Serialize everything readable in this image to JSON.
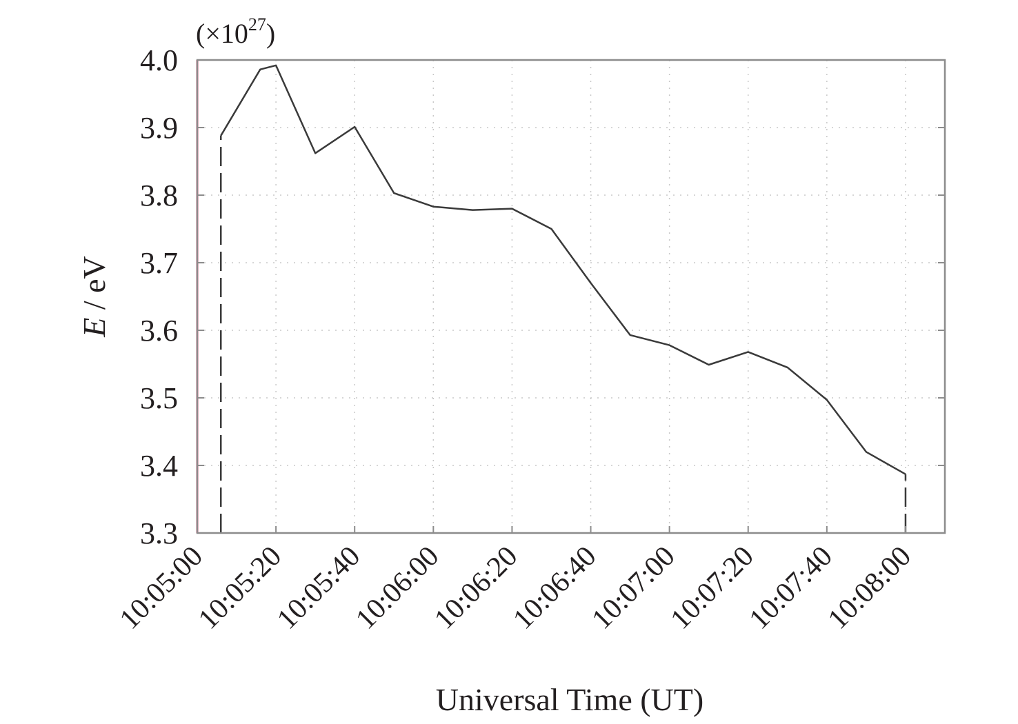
{
  "chart_data": {
    "type": "line",
    "xlabel": "Universal Time (UT)",
    "ylabel_italic": "E",
    "ylabel_rest": " / eV",
    "y_multiplier": {
      "prefix": "(×10",
      "exponent": "27",
      "suffix": ")"
    },
    "xlim": [
      "10:05:00",
      "10:08:10"
    ],
    "ylim": [
      3.3,
      4.0
    ],
    "xticks": [
      "10:05:00",
      "10:05:20",
      "10:05:40",
      "10:06:00",
      "10:06:20",
      "10:06:40",
      "10:07:00",
      "10:07:20",
      "10:07:40",
      "10:08:00"
    ],
    "yticks": [
      "3.3",
      "3.4",
      "3.5",
      "3.6",
      "3.7",
      "3.8",
      "3.9",
      "4.0"
    ],
    "grid": true,
    "series": [
      {
        "color": "#3a3a3a",
        "x": [
          "10:05:06",
          "10:05:16",
          "10:05:20",
          "10:05:30",
          "10:05:40",
          "10:05:50",
          "10:06:00",
          "10:06:10",
          "10:06:20",
          "10:06:30",
          "10:06:40",
          "10:06:50",
          "10:07:00",
          "10:07:10",
          "10:07:20",
          "10:07:30",
          "10:07:40",
          "10:07:50",
          "10:08:00"
        ],
        "y": [
          3.888,
          3.986,
          3.992,
          3.862,
          3.901,
          3.803,
          3.783,
          3.778,
          3.78,
          3.75,
          3.67,
          3.593,
          3.578,
          3.549,
          3.568,
          3.545,
          3.497,
          3.42,
          3.387
        ]
      }
    ],
    "annotations": [
      {
        "kind": "vertical-line",
        "style": "solid",
        "color": "#e8416f",
        "x": "10:05:00"
      },
      {
        "kind": "vertical-line",
        "style": "dashed",
        "color": "#3a3a3a",
        "x": "10:05:06",
        "y_to": 3.888
      },
      {
        "kind": "vertical-line",
        "style": "dashed",
        "color": "#3a3a3a",
        "x": "10:08:00",
        "y_to": 3.387
      }
    ]
  }
}
